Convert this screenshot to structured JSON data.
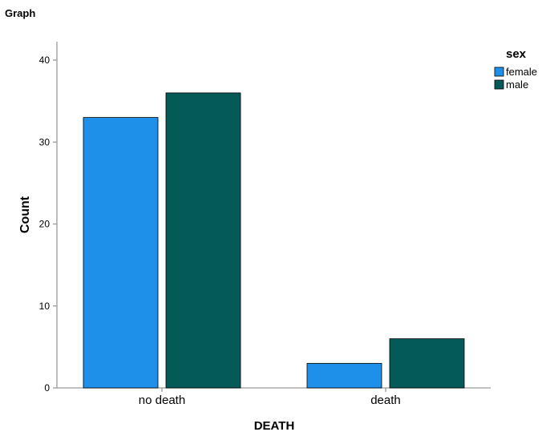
{
  "header": {
    "title": "Graph"
  },
  "chart_data": {
    "type": "bar",
    "categories": [
      "no death",
      "death"
    ],
    "series": [
      {
        "name": "female",
        "values": [
          33,
          3
        ],
        "color": "#1e90ea"
      },
      {
        "name": "male",
        "values": [
          36,
          6
        ],
        "color": "#035a57"
      }
    ],
    "xlabel": "DEATH",
    "ylabel": "Count",
    "ylim": [
      0,
      40
    ],
    "yticks": [
      0,
      10,
      20,
      30,
      40
    ],
    "legend": {
      "title": "sex",
      "position": "top-right"
    },
    "grid": false
  }
}
